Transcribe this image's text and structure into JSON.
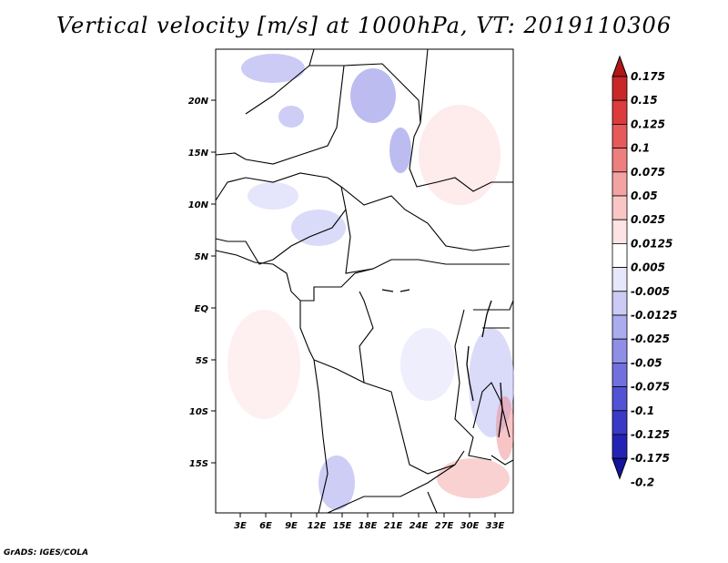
{
  "title": "Vertical velocity [m/s] at 1000hPa, VT: 2019110306",
  "footer": "GrADS: IGES/COLA",
  "map": {
    "lon_range": [
      0,
      35
    ],
    "lat_range": [
      -20,
      25
    ],
    "lon_ticks": [
      "3E",
      "6E",
      "9E",
      "12E",
      "15E",
      "18E",
      "21E",
      "24E",
      "27E",
      "30E",
      "33E"
    ],
    "lat_ticks": [
      "20N",
      "15N",
      "10N",
      "5N",
      "EQ",
      "5S",
      "10S",
      "15S"
    ]
  },
  "colorbar": {
    "labels": [
      "0.175",
      "0.15",
      "0.125",
      "0.1",
      "0.075",
      "0.05",
      "0.025",
      "0.0125",
      "0.005",
      "-0.005",
      "-0.0125",
      "-0.025",
      "-0.05",
      "-0.075",
      "-0.1",
      "-0.125",
      "-0.175",
      "-0.2"
    ],
    "colors": [
      "#b01818",
      "#c82828",
      "#dc3c3c",
      "#e65a5a",
      "#ee7f7f",
      "#f4a3a3",
      "#f9c6c6",
      "#fde3e3",
      "#ffffff",
      "#e7e7fb",
      "#cbcbf6",
      "#ababf0",
      "#8f8fe8",
      "#7070de",
      "#5252d4",
      "#3a3ac6",
      "#2424b4",
      "#14149e"
    ]
  }
}
